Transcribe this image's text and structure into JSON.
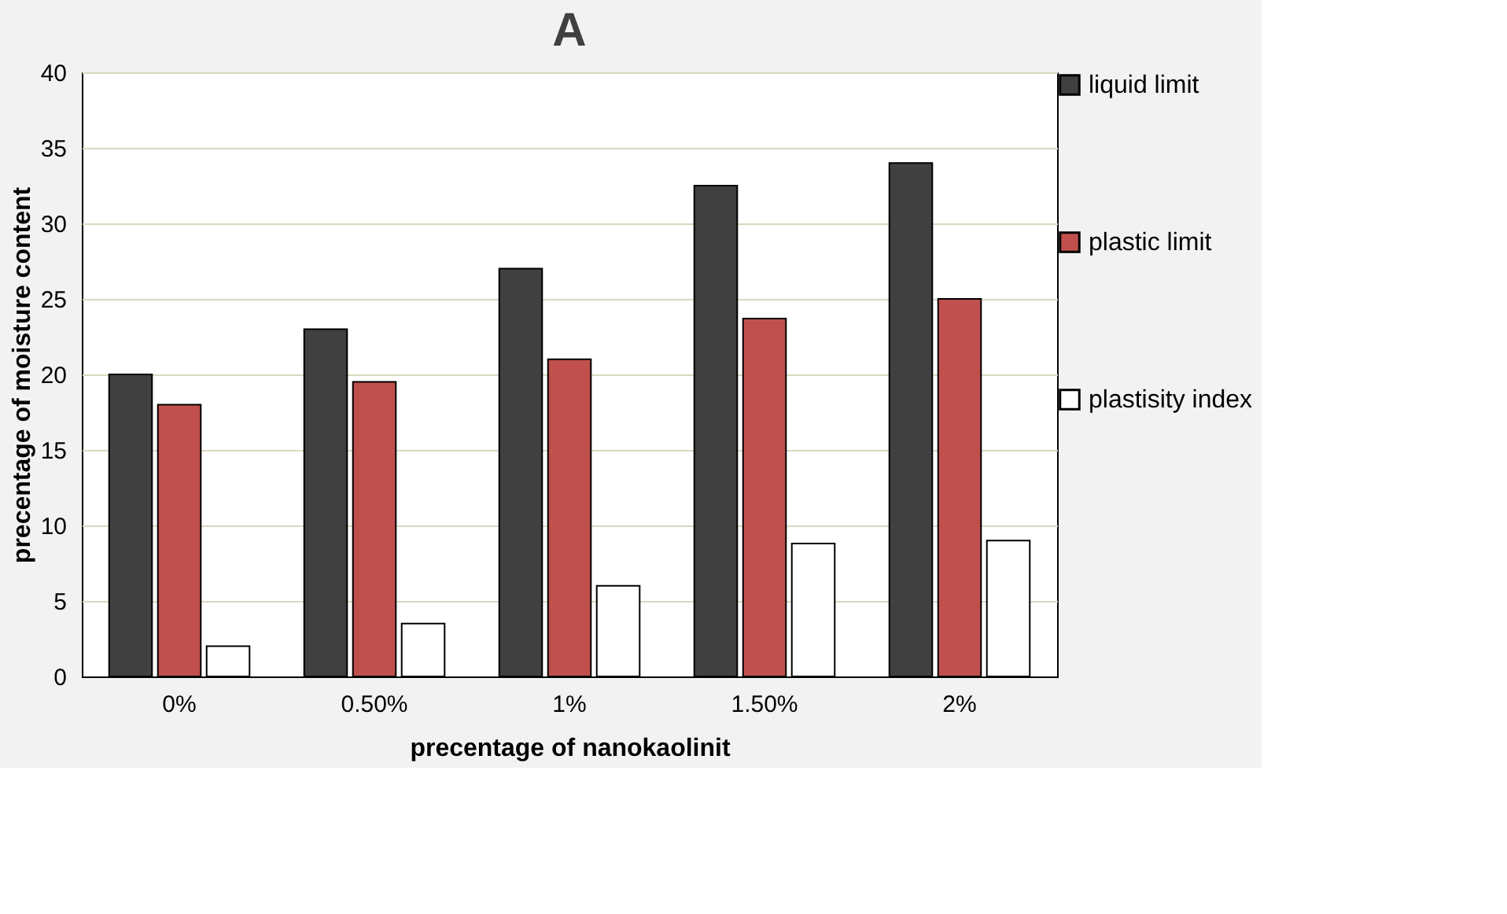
{
  "chart_data": {
    "type": "bar",
    "title": "A",
    "xlabel": "precentage of nanokaolinit",
    "ylabel": "precentage of moisture content",
    "categories": [
      "0%",
      "0.50%",
      "1%",
      "1.50%",
      "2%"
    ],
    "series": [
      {
        "name": "liquid limit",
        "color": "#404040",
        "values": [
          20,
          23,
          27,
          32.5,
          34
        ]
      },
      {
        "name": "plastic limit",
        "color": "#c0504d",
        "values": [
          18,
          19.5,
          21,
          23.7,
          25
        ]
      },
      {
        "name": "plastisity index",
        "color": "#ffffff",
        "values": [
          2,
          3.5,
          6,
          8.8,
          9
        ]
      }
    ],
    "ylim": [
      0,
      40
    ],
    "yticks": [
      0,
      5,
      10,
      15,
      20,
      25,
      30,
      35,
      40
    ],
    "grid": "y",
    "legend": "right"
  }
}
